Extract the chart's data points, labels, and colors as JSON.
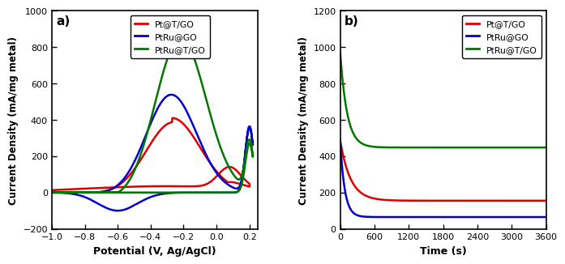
{
  "panel_a": {
    "title": "a)",
    "xlabel": "Potential (V, Ag/AgCl)",
    "ylabel": "Current Density (mA/mg metal)",
    "xlim": [
      -1.0,
      0.25
    ],
    "ylim": [
      -200,
      1000
    ],
    "xticks": [
      -1.0,
      -0.8,
      -0.6,
      -0.4,
      -0.2,
      0.0,
      0.2
    ],
    "yticks": [
      -200,
      0,
      200,
      400,
      600,
      800,
      1000
    ],
    "colors": {
      "red": "#dd0000",
      "blue": "#0000cc",
      "green": "#007700"
    }
  },
  "panel_b": {
    "title": "b)",
    "xlabel": "Time (s)",
    "ylabel": "Current Density (mA/mg metal)",
    "xlim": [
      0,
      3600
    ],
    "ylim": [
      0,
      1200
    ],
    "xticks": [
      0,
      600,
      1200,
      1800,
      2400,
      3000,
      3600
    ],
    "yticks": [
      0,
      200,
      400,
      600,
      800,
      1000,
      1200
    ],
    "curves": {
      "Pt@T/GO": {
        "color": "#dd0000",
        "start": 490,
        "plateau": 155,
        "tau": 180
      },
      "PtRu@GO": {
        "color": "#0000cc",
        "start": 490,
        "plateau": 65,
        "tau": 80
      },
      "PtRu@T/GO": {
        "color": "#007700",
        "start": 980,
        "plateau": 448,
        "tau": 120
      }
    }
  },
  "labels": [
    "Pt@T/GO",
    "PtRu@GO",
    "PtRu@T/GO"
  ]
}
